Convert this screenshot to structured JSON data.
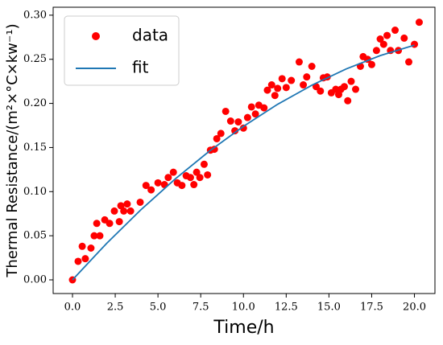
{
  "chart_data": {
    "type": "scatter",
    "xlabel": "Time/h",
    "ylabel": "Thermal Resistance/(m²×°C×kw⁻¹)",
    "xlim": [
      -1.13,
      21.2
    ],
    "ylim": [
      -0.0155,
      0.309
    ],
    "xticks": [
      {
        "value": 0,
        "label": "0.0"
      },
      {
        "value": 2.5,
        "label": "2.5"
      },
      {
        "value": 5,
        "label": "5.0"
      },
      {
        "value": 7.5,
        "label": "7.5"
      },
      {
        "value": 10,
        "label": "10.0"
      },
      {
        "value": 12.5,
        "label": "12.5"
      },
      {
        "value": 15,
        "label": "15.0"
      },
      {
        "value": 17.5,
        "label": "17.5"
      },
      {
        "value": 20,
        "label": "20.0"
      }
    ],
    "yticks": [
      {
        "value": 0,
        "label": "0.00"
      },
      {
        "value": 0.05,
        "label": "0.05"
      },
      {
        "value": 0.1,
        "label": "0.10"
      },
      {
        "value": 0.15,
        "label": "0.15"
      },
      {
        "value": 0.2,
        "label": "0.20"
      },
      {
        "value": 0.25,
        "label": "0.25"
      },
      {
        "value": 0.3,
        "label": "0.30"
      }
    ],
    "legend": "upper left",
    "series": [
      {
        "name": "data",
        "type": "scatter",
        "color": "#ff0000",
        "x": [
          0,
          0.33,
          0.57,
          0.75,
          1.08,
          1.27,
          1.42,
          1.6,
          1.89,
          2.17,
          2.45,
          2.74,
          2.83,
          3.0,
          3.2,
          3.4,
          3.96,
          4.3,
          4.6,
          5.0,
          5.38,
          5.6,
          5.9,
          6.13,
          6.4,
          6.65,
          6.9,
          7.1,
          7.26,
          7.45,
          7.7,
          7.9,
          8.07,
          8.3,
          8.44,
          8.68,
          8.96,
          9.25,
          9.5,
          9.7,
          10.0,
          10.24,
          10.47,
          10.7,
          10.9,
          11.2,
          11.4,
          11.65,
          11.84,
          12.0,
          12.26,
          12.5,
          12.8,
          13.26,
          13.5,
          13.7,
          14.0,
          14.25,
          14.5,
          14.67,
          14.9,
          15.14,
          15.4,
          15.57,
          15.7,
          15.9,
          16.1,
          16.3,
          16.56,
          16.84,
          17.0,
          17.26,
          17.5,
          17.78,
          18.0,
          18.2,
          18.4,
          18.6,
          18.87,
          19.06,
          19.4,
          19.67,
          20.0,
          20.28
        ],
        "values": [
          0,
          0.021,
          0.038,
          0.024,
          0.036,
          0.05,
          0.064,
          0.05,
          0.068,
          0.064,
          0.078,
          0.066,
          0.084,
          0.078,
          0.086,
          0.078,
          0.088,
          0.107,
          0.102,
          0.11,
          0.108,
          0.116,
          0.122,
          0.11,
          0.107,
          0.118,
          0.116,
          0.108,
          0.122,
          0.116,
          0.131,
          0.119,
          0.147,
          0.148,
          0.16,
          0.166,
          0.191,
          0.18,
          0.169,
          0.179,
          0.172,
          0.184,
          0.196,
          0.188,
          0.198,
          0.195,
          0.215,
          0.221,
          0.209,
          0.217,
          0.228,
          0.218,
          0.226,
          0.247,
          0.221,
          0.23,
          0.242,
          0.219,
          0.214,
          0.229,
          0.23,
          0.212,
          0.216,
          0.21,
          0.216,
          0.219,
          0.203,
          0.225,
          0.216,
          0.242,
          0.253,
          0.25,
          0.244,
          0.26,
          0.273,
          0.267,
          0.277,
          0.26,
          0.283,
          0.26,
          0.274,
          0.247,
          0.267,
          0.292
        ]
      },
      {
        "name": "fit",
        "type": "line",
        "color": "#1f77b4",
        "x": [
          0,
          2,
          4,
          6,
          8,
          10,
          12,
          14,
          16,
          18,
          20
        ],
        "values": [
          0,
          0.0414,
          0.0794,
          0.1142,
          0.1458,
          0.174,
          0.199,
          0.2206,
          0.239,
          0.2542,
          0.266
        ]
      }
    ]
  }
}
